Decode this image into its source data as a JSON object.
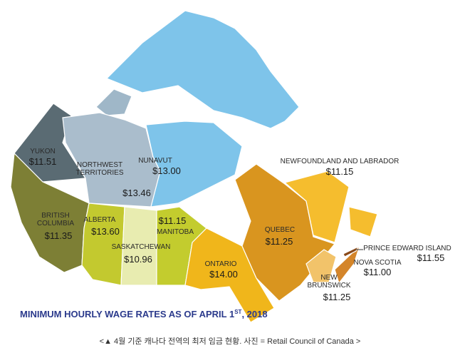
{
  "title": {
    "text": "MINIMUM HOURLY WAGE RATES AS OF APRIL 1",
    "superscript": "ST",
    "suffix": ", 2018"
  },
  "caption": "<▲ 4월 기준 캐나다 전역의 최저 임금 현황. 사진 = Retail Council of Canada >",
  "regions": [
    {
      "name": [
        "YUKON"
      ],
      "wage": "$11.51"
    },
    {
      "name": [
        "NORTHWEST",
        "TERRITORIES"
      ],
      "wage": "$13.46"
    },
    {
      "name": [
        "NUNAVUT"
      ],
      "wage": "$13.00"
    },
    {
      "name": [
        "BRITISH",
        "COLUMBIA"
      ],
      "wage": "$11.35"
    },
    {
      "name": [
        "ALBERTA"
      ],
      "wage": "$13.60"
    },
    {
      "name": [
        "SASKATCHEWAN"
      ],
      "wage": "$10.96"
    },
    {
      "name": [
        "MANITOBA"
      ],
      "wage": "$11.15"
    },
    {
      "name": [
        "ONTARIO"
      ],
      "wage": "$14.00"
    },
    {
      "name": [
        "QUEBEC"
      ],
      "wage": "$11.25"
    },
    {
      "name": [
        "NEWFOUNDLAND AND LABRADOR"
      ],
      "wage": "$11.15"
    },
    {
      "name": [
        "NEW",
        "BRUNSWICK"
      ],
      "wage": "$11.25"
    },
    {
      "name": [
        "NOVA SCOTIA"
      ],
      "wage": "$11.00"
    },
    {
      "name": [
        "PRINCE EDWARD ISLAND"
      ],
      "wage": "$11.55"
    }
  ]
}
